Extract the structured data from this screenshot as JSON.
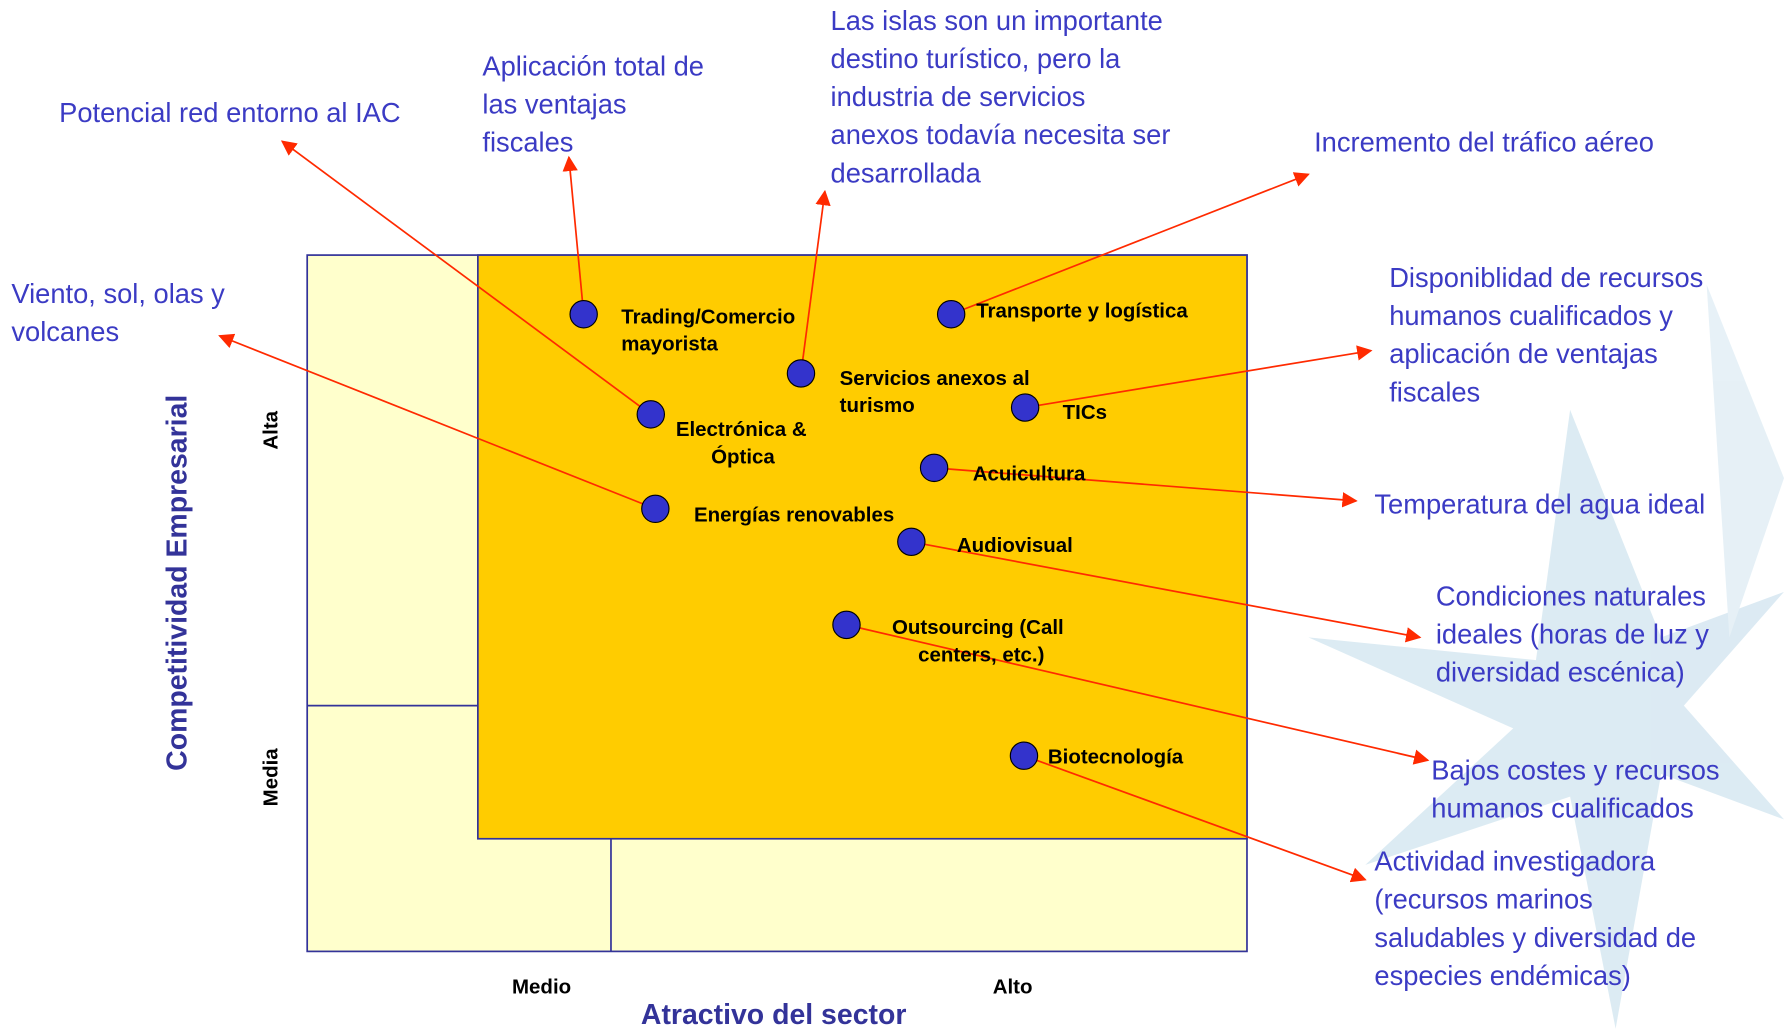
{
  "axes": {
    "x_title": "Atractivo del sector",
    "x_labels": [
      "Medio",
      "Alto"
    ],
    "y_title": "Competitividad Empresarial",
    "y_labels": [
      "Alta",
      "Media"
    ]
  },
  "nodes": [
    {
      "label": [
        "Trading/Comercio",
        "mayorista"
      ],
      "note": [
        "Aplicación total de",
        "las ventajas",
        "fiscales"
      ]
    },
    {
      "label": [
        "Transporte y logística"
      ],
      "note": [
        "Incremento del tráfico aéreo"
      ]
    },
    {
      "label": [
        "Servicios anexos al",
        "turismo"
      ],
      "note": [
        "Las islas son un importante",
        "destino turístico, pero la",
        "industria de servicios",
        "anexos todavía necesita ser",
        "desarrollada"
      ]
    },
    {
      "label": [
        "Electrónica &",
        "Óptica"
      ],
      "note": [
        "Potencial red entorno al IAC"
      ]
    },
    {
      "label": [
        "TICs"
      ],
      "note": [
        "Disponiblidad de recursos",
        "humanos cualificados y",
        "aplicación de ventajas",
        "fiscales"
      ]
    },
    {
      "label": [
        "Acuicultura"
      ],
      "note": [
        "Temperatura del agua ideal"
      ]
    },
    {
      "label": [
        "Energías renovables"
      ],
      "note": [
        "Viento, sol, olas y",
        "volcanes"
      ]
    },
    {
      "label": [
        "Audiovisual"
      ],
      "note": [
        "Condiciones naturales",
        "ideales (horas de luz y",
        "diversidad escénica)"
      ]
    },
    {
      "label": [
        "Outsourcing (Call",
        "centers, etc.)"
      ],
      "note": [
        "Bajos costes y recursos",
        "humanos cualificados"
      ]
    },
    {
      "label": [
        "Biotecnología"
      ],
      "note": [
        "Actividad investigadora",
        "(recursos marinos",
        "saludables y diversidad de",
        "especies endémicas)"
      ]
    }
  ]
}
